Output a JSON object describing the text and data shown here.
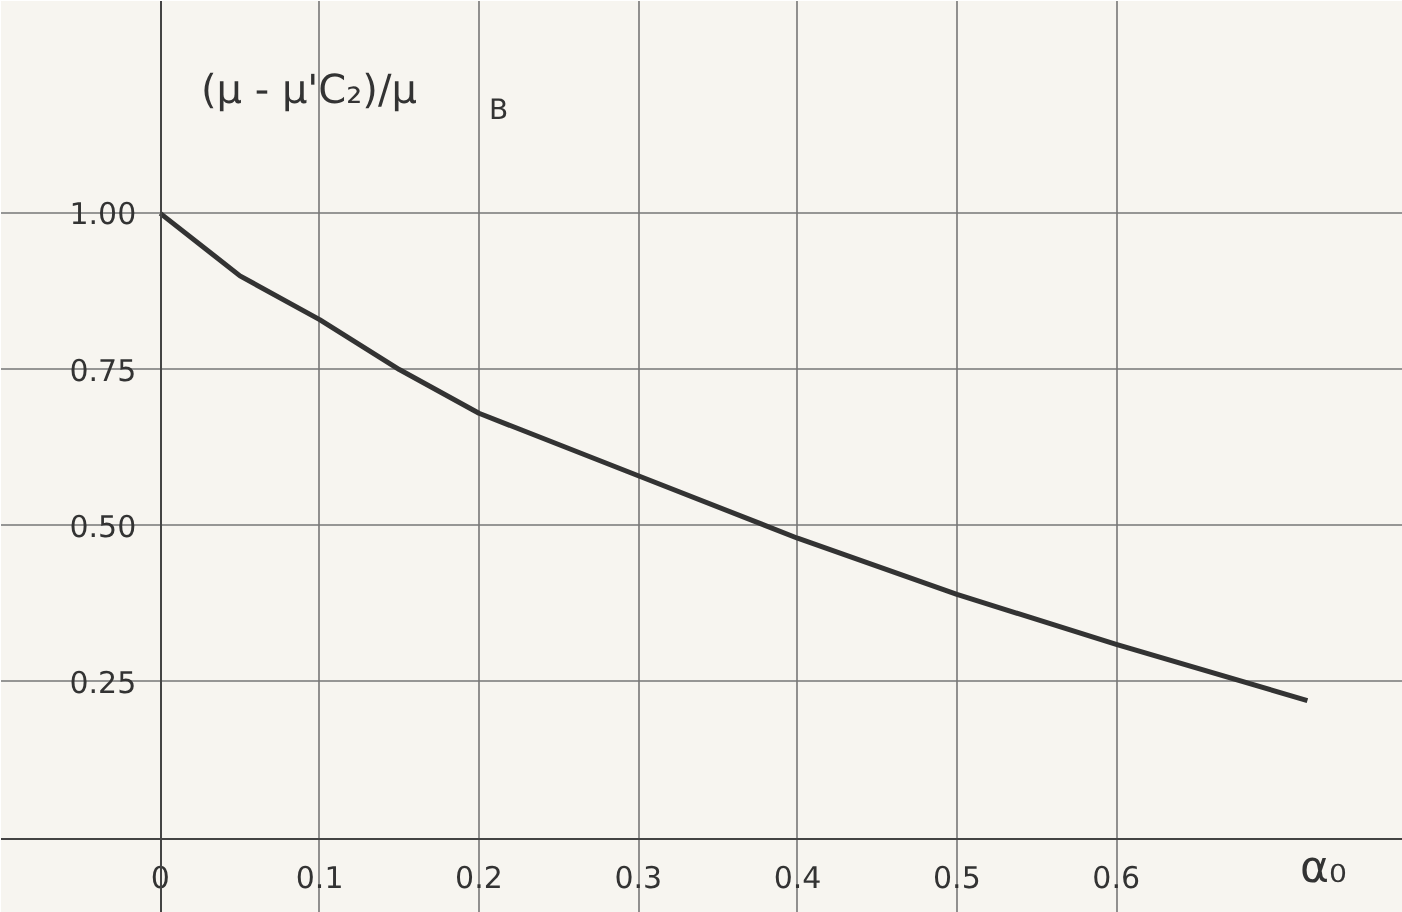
{
  "chart_data": {
    "type": "line",
    "ylabel": "(μ - μ'C₂)/μ$_{B}$",
    "xlabel": "α₀",
    "x": [
      0,
      0.05,
      0.1,
      0.15,
      0.2,
      0.3,
      0.4,
      0.5,
      0.6,
      0.72
    ],
    "series": [
      {
        "color": "#333333",
        "values": [
          1.0,
          0.9,
          0.83,
          0.75,
          0.68,
          0.58,
          0.48,
          0.39,
          0.31,
          0.22
        ]
      }
    ],
    "xlim": [
      -0.1,
      0.78
    ],
    "ylim": [
      -0.12,
      1.34
    ],
    "xticks": [
      0,
      0.1,
      0.2,
      0.3,
      0.4,
      0.5,
      0.6
    ],
    "yticks": [
      {
        "value": 0.25,
        "label": "0.25"
      },
      {
        "value": 0.5,
        "label": "0.50"
      },
      {
        "value": 0.75,
        "label": "0.75"
      },
      {
        "value": 1.0,
        "label": "1.00"
      }
    ],
    "grid": true,
    "marker": "none",
    "line_style": "solid"
  }
}
